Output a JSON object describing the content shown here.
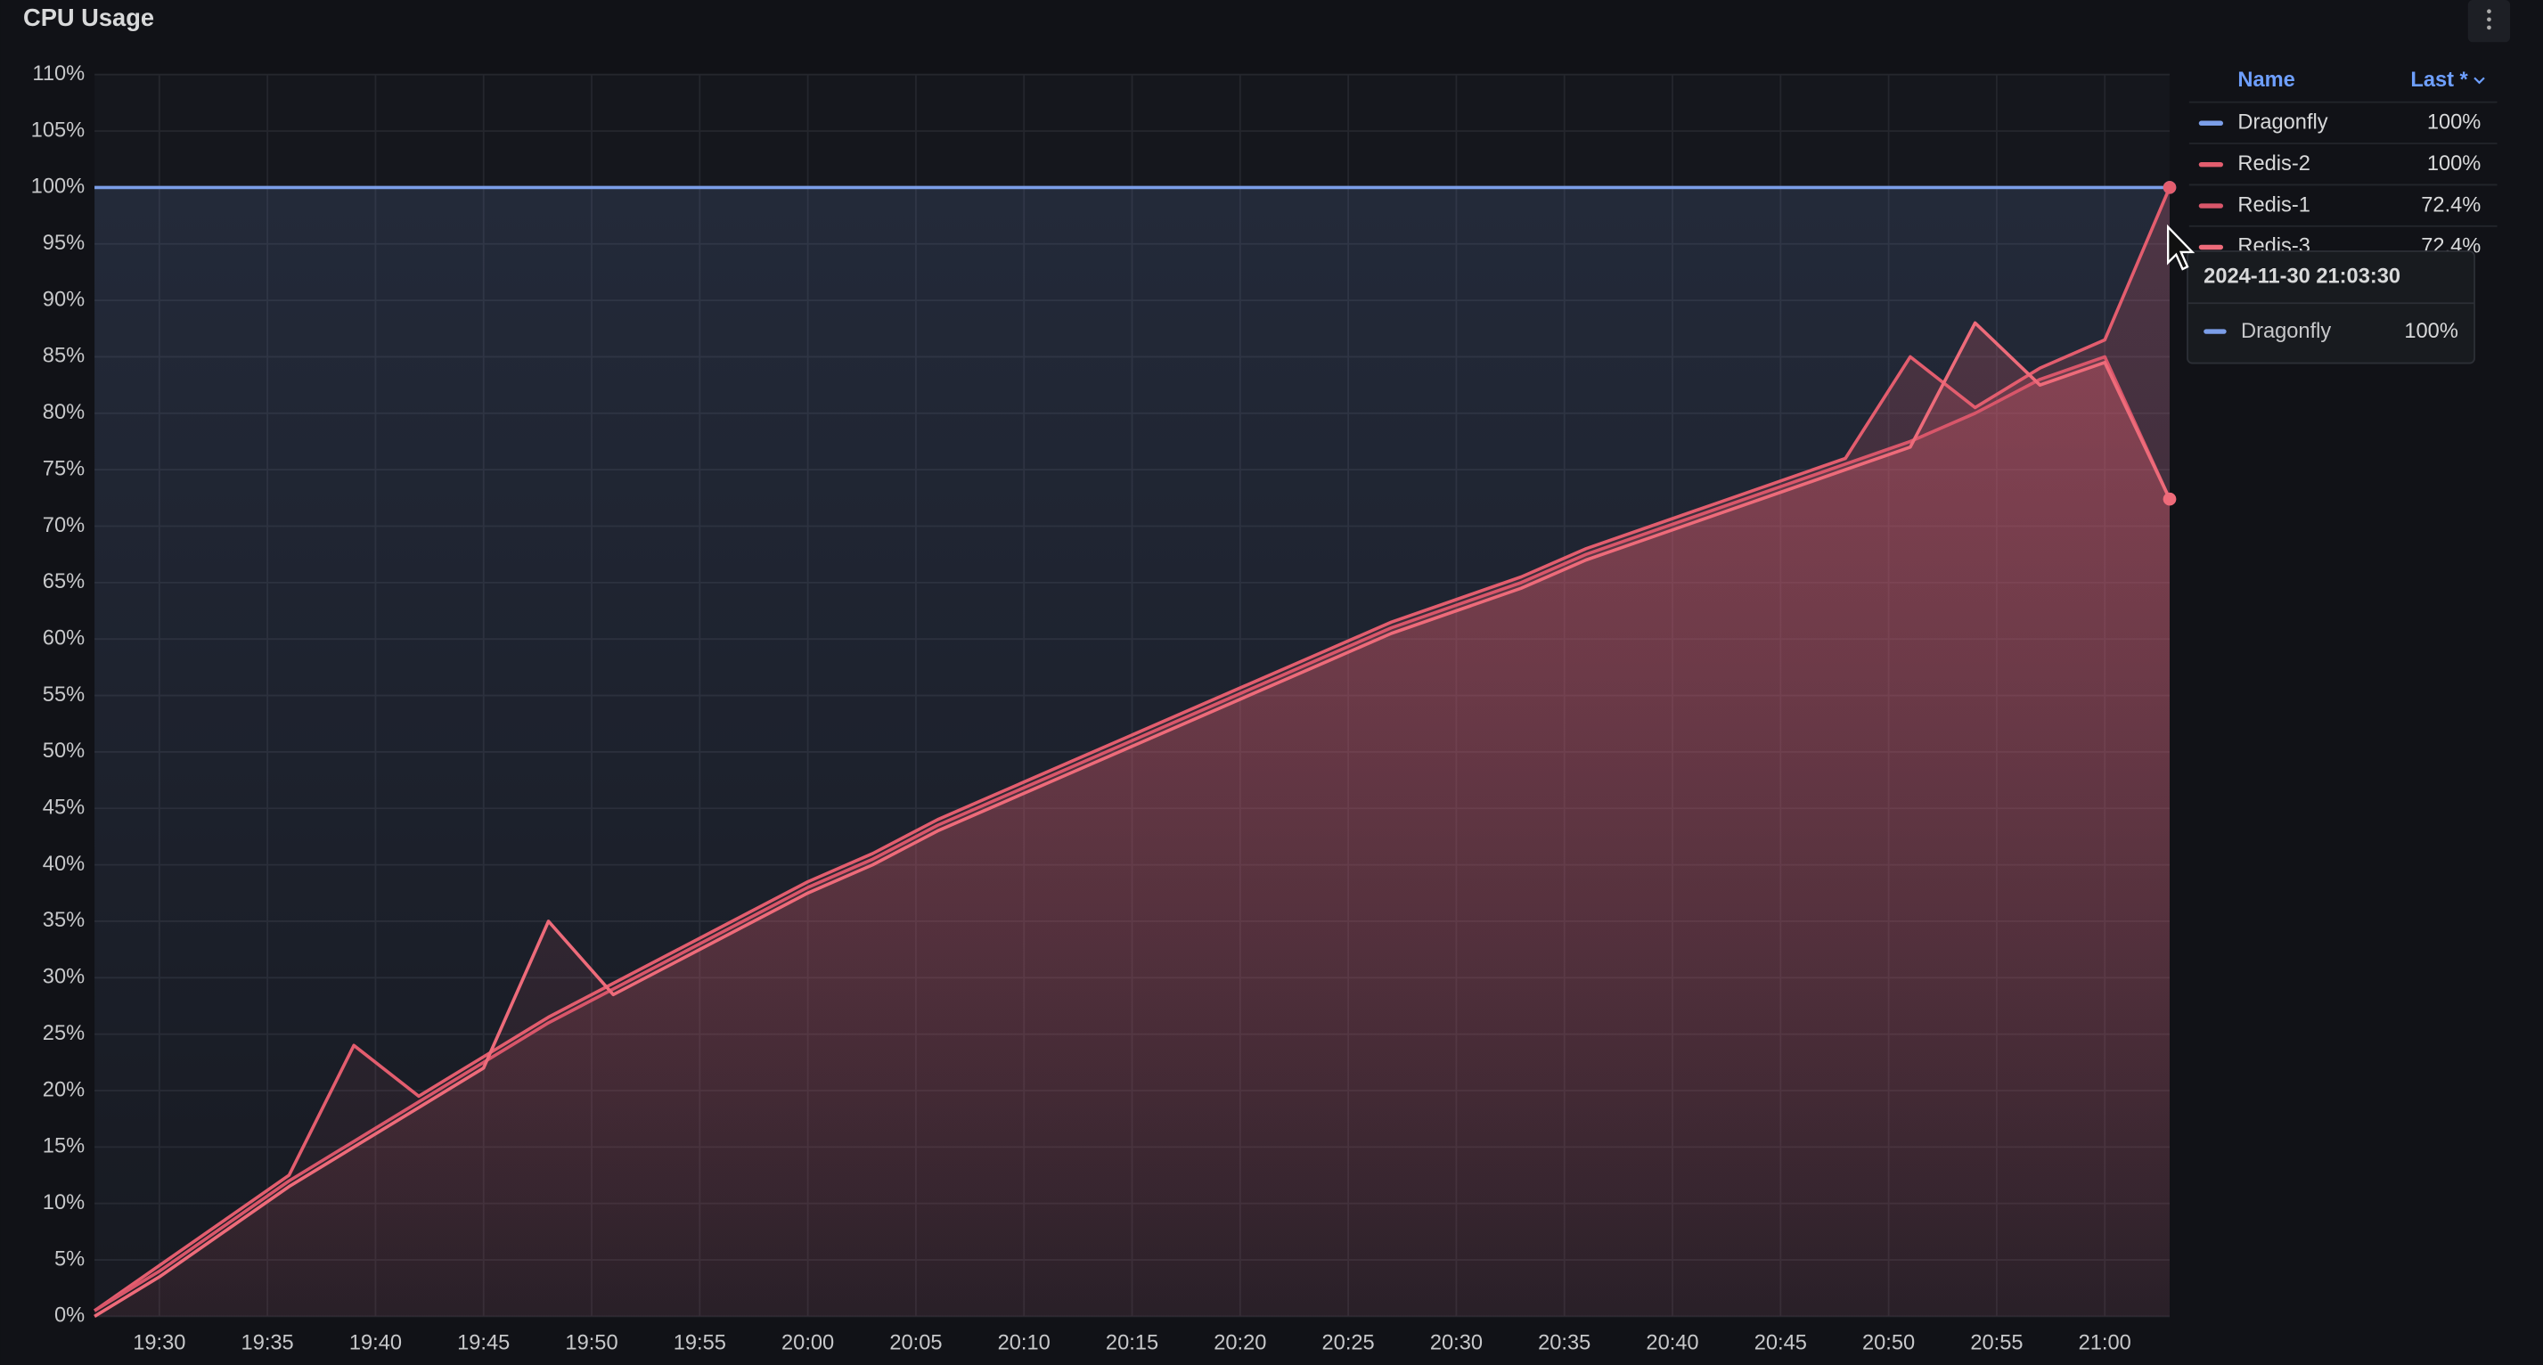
{
  "chart_data": {
    "type": "line",
    "title": "CPU Usage",
    "x": [
      "19:27",
      "19:30",
      "19:33",
      "19:36",
      "19:39",
      "19:42",
      "19:45",
      "19:48",
      "19:51",
      "19:54",
      "19:57",
      "20:00",
      "20:03",
      "20:06",
      "20:09",
      "20:12",
      "20:15",
      "20:18",
      "20:21",
      "20:24",
      "20:27",
      "20:30",
      "20:33",
      "20:36",
      "20:39",
      "20:42",
      "20:45",
      "20:48",
      "20:51",
      "20:54",
      "20:57",
      "21:00",
      "21:03"
    ],
    "xlim": [
      "19:27",
      "21:03"
    ],
    "xticks": [
      "19:30",
      "19:35",
      "19:40",
      "19:45",
      "19:50",
      "19:55",
      "20:00",
      "20:05",
      "20:10",
      "20:15",
      "20:20",
      "20:25",
      "20:30",
      "20:35",
      "20:40",
      "20:45",
      "20:50",
      "20:55",
      "21:00"
    ],
    "ylim": [
      0,
      110
    ],
    "yticks": [
      {
        "value": 0,
        "label": "0%"
      },
      {
        "value": 5,
        "label": "5%"
      },
      {
        "value": 10,
        "label": "10%"
      },
      {
        "value": 15,
        "label": "15%"
      },
      {
        "value": 20,
        "label": "20%"
      },
      {
        "value": 25,
        "label": "25%"
      },
      {
        "value": 30,
        "label": "30%"
      },
      {
        "value": 35,
        "label": "35%"
      },
      {
        "value": 40,
        "label": "40%"
      },
      {
        "value": 45,
        "label": "45%"
      },
      {
        "value": 50,
        "label": "50%"
      },
      {
        "value": 55,
        "label": "55%"
      },
      {
        "value": 60,
        "label": "60%"
      },
      {
        "value": 65,
        "label": "65%"
      },
      {
        "value": 70,
        "label": "70%"
      },
      {
        "value": 75,
        "label": "75%"
      },
      {
        "value": 80,
        "label": "80%"
      },
      {
        "value": 85,
        "label": "85%"
      },
      {
        "value": 90,
        "label": "90%"
      },
      {
        "value": 95,
        "label": "95%"
      },
      {
        "value": 100,
        "label": "100%"
      },
      {
        "value": 105,
        "label": "105%"
      },
      {
        "value": 110,
        "label": "110%"
      }
    ],
    "grid": true,
    "series": [
      {
        "name": "Dragonfly",
        "color": "#7b9ee8",
        "fill": false,
        "values": [
          100,
          100,
          100,
          100,
          100,
          100,
          100,
          100,
          100,
          100,
          100,
          100,
          100,
          100,
          100,
          100,
          100,
          100,
          100,
          100,
          100,
          100,
          100,
          100,
          100,
          100,
          100,
          100,
          100,
          100,
          100,
          100,
          100
        ]
      },
      {
        "name": "Redis-2",
        "color": "#e35d6e",
        "fill": true,
        "values": [
          0.5,
          4.5,
          8.5,
          12.5,
          24,
          19.5,
          23,
          26.5,
          29.5,
          32.5,
          35.5,
          38.5,
          41,
          44,
          46.5,
          49,
          51.5,
          54,
          56.5,
          59,
          61.5,
          63.5,
          65.5,
          68,
          70,
          72,
          74,
          76,
          85,
          80.5,
          84,
          86.5,
          100
        ]
      },
      {
        "name": "Redis-1",
        "color": "#d9566a",
        "fill": true,
        "values": [
          0.5,
          4,
          8,
          12,
          15.5,
          19,
          22.5,
          26,
          29,
          32,
          35,
          38,
          40.5,
          43.5,
          46,
          48.5,
          51,
          53.5,
          56,
          58.5,
          61,
          63,
          65,
          67.5,
          69.5,
          71.5,
          73.5,
          75.5,
          77.5,
          80,
          83,
          85,
          72.4
        ]
      },
      {
        "name": "Redis-3",
        "color": "#ee6b7a",
        "fill": true,
        "values": [
          0,
          3.5,
          7.5,
          11.5,
          15,
          18.5,
          22,
          35,
          28.5,
          31.5,
          34.5,
          37.5,
          40,
          43,
          45.5,
          48,
          50.5,
          53,
          55.5,
          58,
          60.5,
          62.5,
          64.5,
          67,
          69,
          71,
          73,
          75,
          77,
          88,
          82.5,
          84.5,
          72.4
        ]
      }
    ],
    "legend": {
      "name_header": "Name",
      "value_header": "Last *",
      "last_labels": [
        "100%",
        "100%",
        "72.4%",
        "72.4%"
      ]
    },
    "tooltip": {
      "time": "2024-11-30 21:03:30",
      "value_label": "100%"
    }
  }
}
